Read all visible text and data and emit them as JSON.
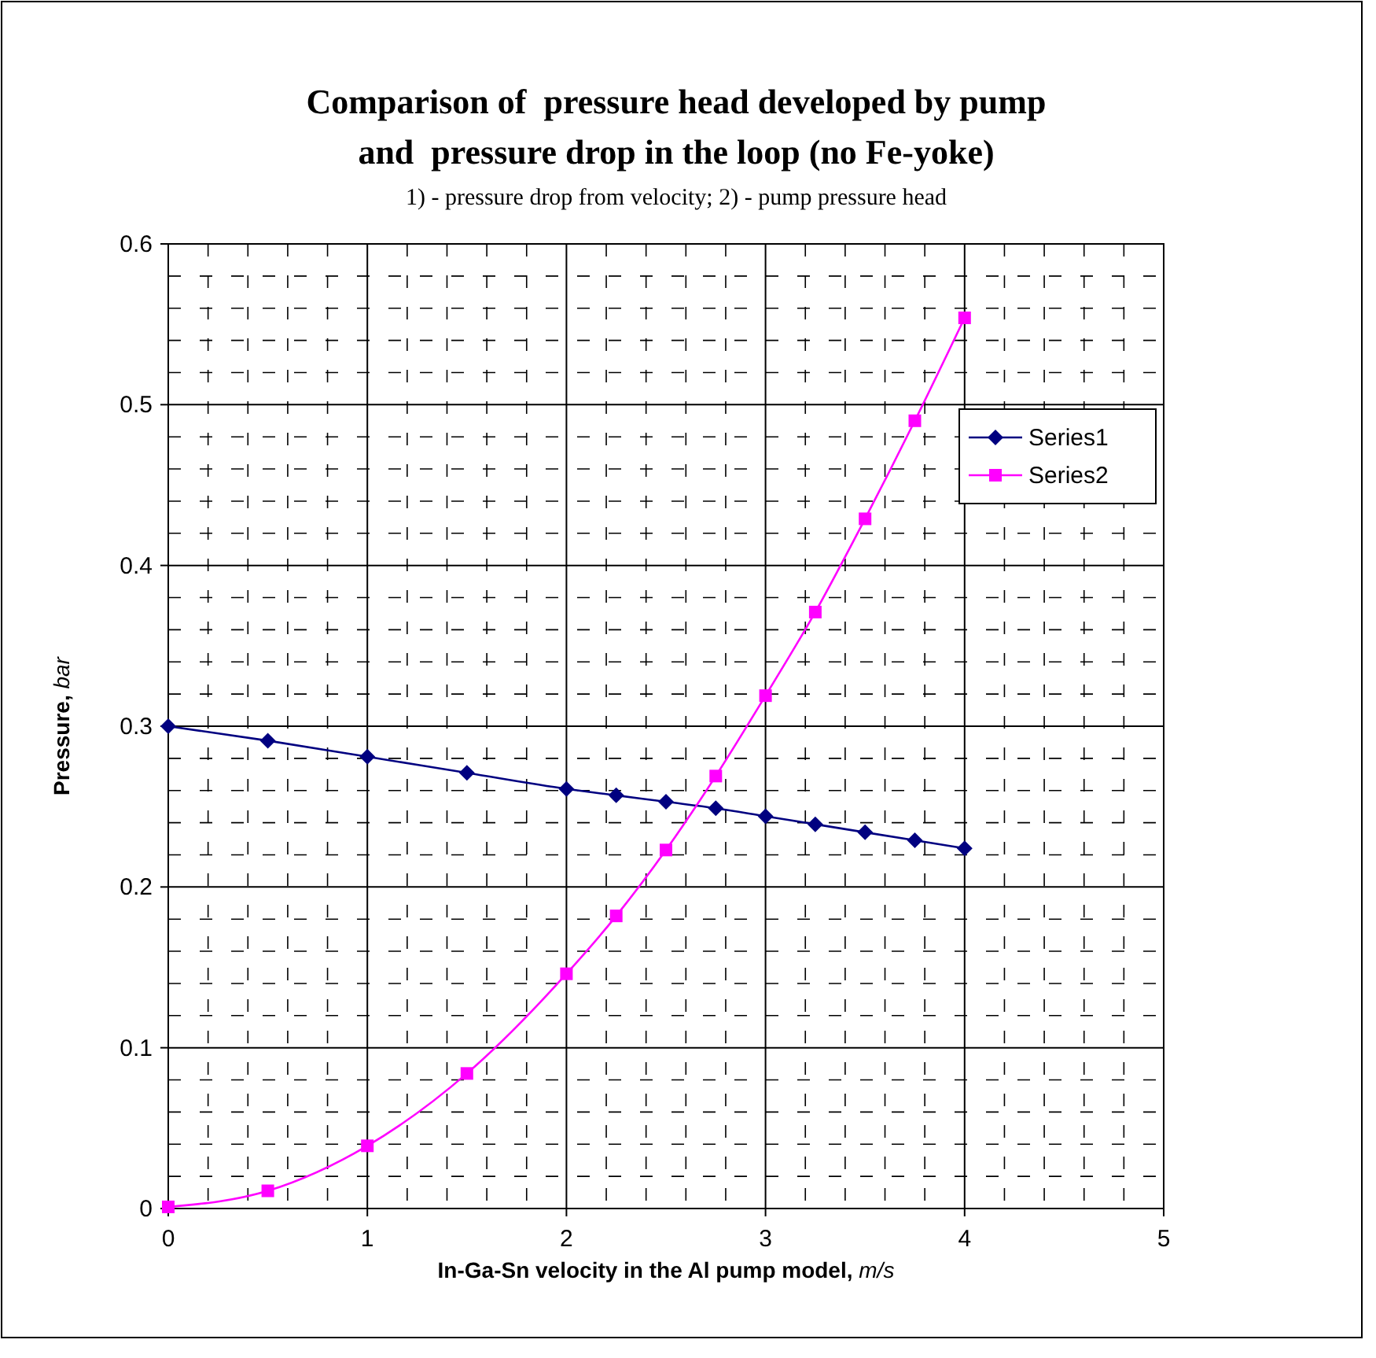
{
  "chart_data": {
    "type": "line",
    "title": "Comparison of  pressure head developed by pump\nand  pressure drop in the loop (no Fe-yoke)",
    "subtitle": "1) - pressure drop from velocity; 2) - pump pressure head",
    "xlabel": "In-Ga-Sn velocity in the Al pump model, m/s",
    "ylabel": "Pressure, bar",
    "xlim": [
      0,
      5
    ],
    "xticks": [
      0,
      1,
      2,
      3,
      4,
      5
    ],
    "ylim": [
      0,
      0.6
    ],
    "yticks": [
      0,
      0.1,
      0.2,
      0.3,
      0.4,
      0.5,
      0.6
    ],
    "grid": true,
    "legend": "top right",
    "x": [
      0,
      0.5,
      1,
      1.5,
      2,
      2.25,
      2.5,
      2.75,
      3,
      3.25,
      3.5,
      3.75,
      4
    ],
    "series": [
      {
        "name": "Series1",
        "color": "#000080",
        "marker": "diamond",
        "values": [
          0.3,
          0.291,
          0.281,
          0.271,
          0.261,
          0.257,
          0.253,
          0.249,
          0.244,
          0.239,
          0.234,
          0.229,
          0.224
        ]
      },
      {
        "name": "Series2",
        "color": "#ff00ff",
        "marker": "square",
        "values": [
          0.001,
          0.011,
          0.039,
          0.084,
          0.146,
          0.182,
          0.223,
          0.269,
          0.319,
          0.371,
          0.429,
          0.49,
          0.554
        ]
      }
    ]
  }
}
